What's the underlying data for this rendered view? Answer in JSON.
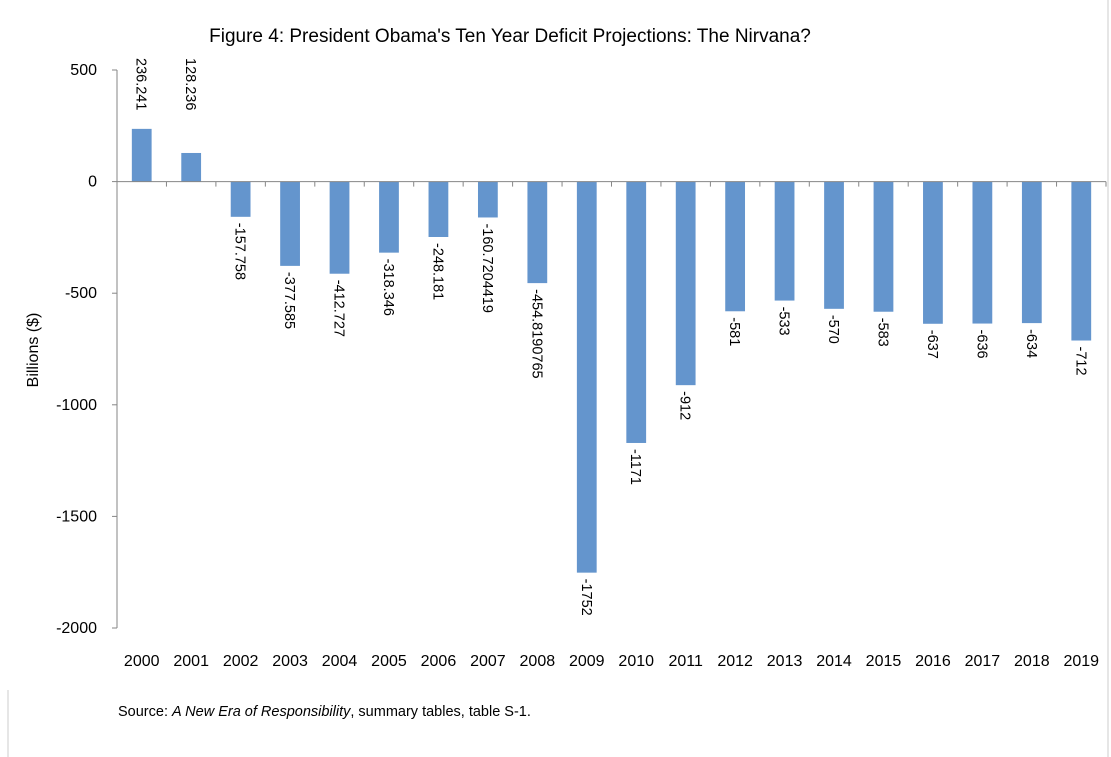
{
  "chart_data": {
    "type": "bar",
    "title": "Figure 4: President Obama's Ten Year Deficit Projections: The Nirvana?",
    "xlabel": "",
    "ylabel": "Billions ($)",
    "categories": [
      "2000",
      "2001",
      "2002",
      "2003",
      "2004",
      "2005",
      "2006",
      "2007",
      "2008",
      "2009",
      "2010",
      "2011",
      "2012",
      "2013",
      "2014",
      "2015",
      "2016",
      "2017",
      "2018",
      "2019"
    ],
    "values": [
      236.241,
      128.236,
      -157.758,
      -377.585,
      -412.727,
      -318.346,
      -248.181,
      -160.7204419,
      -454.8190765,
      -1752,
      -1171,
      -912,
      -581,
      -533,
      -570,
      -583,
      -637,
      -636,
      -634,
      -712
    ],
    "data_labels": [
      "236.241",
      "128.236",
      "-157.758",
      "-377.585",
      "-412.727",
      "-318.346",
      "-248.181",
      "-160.7204419",
      "-454.8190765",
      "-1752",
      "-1171",
      "-912",
      "-581",
      "-533",
      "-570",
      "-583",
      "-637",
      "-636",
      "-634",
      "-712"
    ],
    "ylim": [
      -2000,
      500
    ],
    "yticks": [
      "500",
      "0",
      "-500",
      "-1000",
      "-1500",
      "-2000"
    ],
    "ytick_values": [
      500,
      0,
      -500,
      -1000,
      -1500,
      -2000
    ],
    "grid": false,
    "legend": "none",
    "bar_color": "#6495cd",
    "source": {
      "prefix": "Source: ",
      "italic": "A New Era of Responsibility",
      "suffix": ", summary tables, table S-1."
    }
  }
}
